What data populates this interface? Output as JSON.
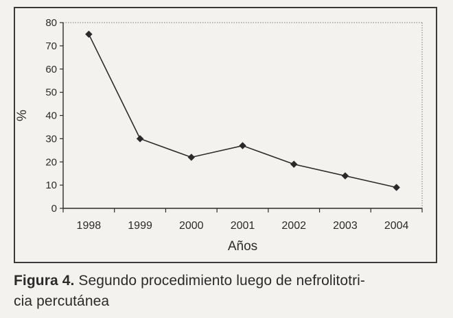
{
  "chart_data": {
    "type": "line",
    "title": "",
    "xlabel": "Años",
    "ylabel": "%",
    "categories": [
      "1998",
      "1999",
      "2000",
      "2001",
      "2002",
      "2003",
      "2004"
    ],
    "series": [
      {
        "values": [
          75,
          30,
          22,
          27,
          19,
          14,
          9
        ]
      }
    ],
    "ylim": [
      0,
      80
    ],
    "yticks": [
      "0",
      "10",
      "20",
      "30",
      "40",
      "50",
      "60",
      "70",
      "80"
    ],
    "grid": false,
    "legend": "none",
    "marker": "diamond",
    "line_color": "#2a2a2a"
  },
  "caption": {
    "figure_label": "Figura 4.",
    "text_line1": " Segundo procedimiento luego de nefrolitotri-",
    "text_line2": "cia percutánea"
  }
}
